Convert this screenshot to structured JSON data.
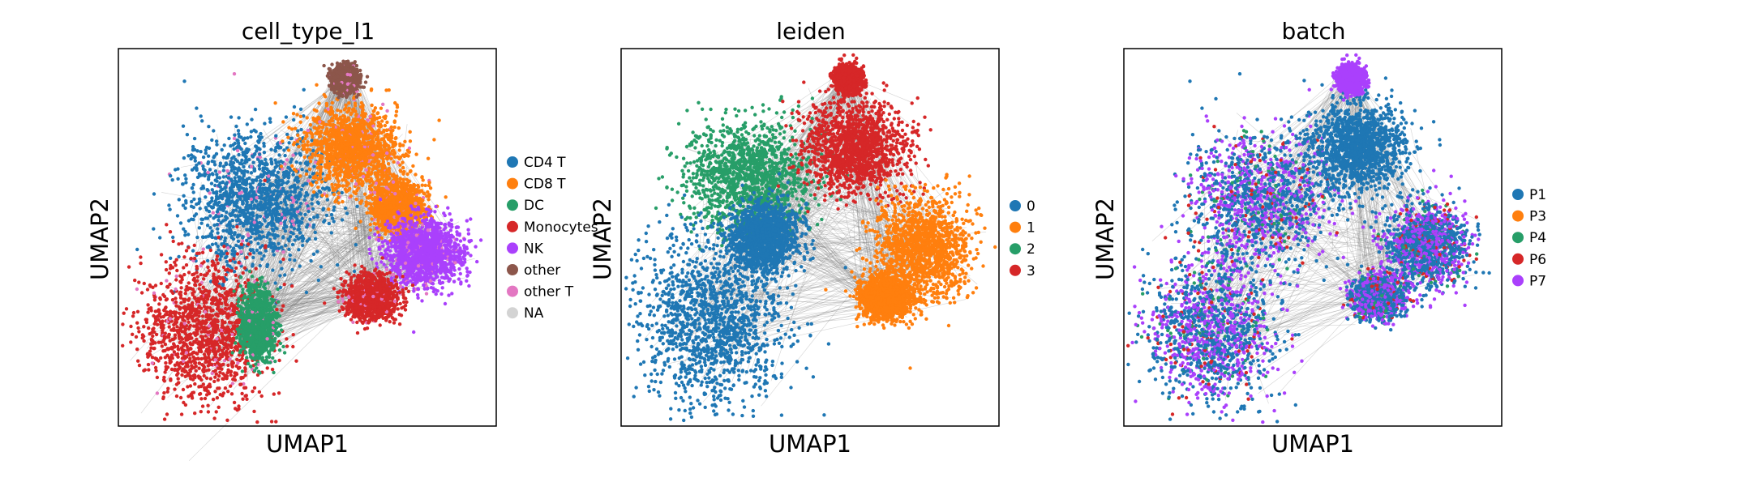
{
  "figure": {
    "panels": [
      {
        "title": "cell_type_l1",
        "xlabel": "UMAP1",
        "ylabel": "UMAP2",
        "legend_title": "",
        "legend": [
          {
            "label": "CD4 T",
            "color": "#1f77b4"
          },
          {
            "label": "CD8 T",
            "color": "#ff7f0e"
          },
          {
            "label": "DC",
            "color": "#279e68"
          },
          {
            "label": "Monocytes",
            "color": "#d62728"
          },
          {
            "label": "NK",
            "color": "#aa40fc"
          },
          {
            "label": "other",
            "color": "#8c564b"
          },
          {
            "label": "other T",
            "color": "#e377c2"
          },
          {
            "label": "NA",
            "color": "#d3d3d3"
          }
        ]
      },
      {
        "title": "leiden",
        "xlabel": "UMAP1",
        "ylabel": "UMAP2",
        "legend": [
          {
            "label": "0",
            "color": "#1f77b4"
          },
          {
            "label": "1",
            "color": "#ff7f0e"
          },
          {
            "label": "2",
            "color": "#279e68"
          },
          {
            "label": "3",
            "color": "#d62728"
          }
        ]
      },
      {
        "title": "batch",
        "xlabel": "UMAP1",
        "ylabel": "UMAP2",
        "legend": [
          {
            "label": "P1",
            "color": "#1f77b4"
          },
          {
            "label": "P3",
            "color": "#ff7f0e"
          },
          {
            "label": "P4",
            "color": "#279e68"
          },
          {
            "label": "P6",
            "color": "#d62728"
          },
          {
            "label": "P7",
            "color": "#aa40fc"
          }
        ]
      }
    ]
  },
  "chart_data": [
    {
      "type": "scatter",
      "title": "cell_type_l1",
      "xlabel": "UMAP1",
      "ylabel": "UMAP2",
      "xticks": [],
      "yticks": [],
      "grid": false,
      "legend_position": "right",
      "edges_color": "#808080",
      "categories": [
        "CD4 T",
        "CD8 T",
        "DC",
        "Monocytes",
        "NK",
        "other",
        "other T",
        "NA"
      ],
      "colors": [
        "#1f77b4",
        "#ff7f0e",
        "#279e68",
        "#d62728",
        "#aa40fc",
        "#8c564b",
        "#e377c2",
        "#d3d3d3"
      ],
      "clusters": [
        {
          "category": "CD4 T",
          "center": [
            0.36,
            0.6
          ],
          "spread": [
            0.17,
            0.16
          ]
        },
        {
          "category": "Monocytes",
          "center": [
            0.23,
            0.25
          ],
          "spread": [
            0.15,
            0.17
          ]
        },
        {
          "category": "DC",
          "center": [
            0.37,
            0.27
          ],
          "spread": [
            0.04,
            0.08
          ]
        },
        {
          "category": "CD8 T",
          "center": [
            0.62,
            0.74
          ],
          "spread": [
            0.11,
            0.1
          ]
        },
        {
          "category": "CD8 T",
          "center": [
            0.74,
            0.58
          ],
          "spread": [
            0.06,
            0.06
          ]
        },
        {
          "category": "NK",
          "center": [
            0.81,
            0.46
          ],
          "spread": [
            0.09,
            0.08
          ]
        },
        {
          "category": "Monocytes",
          "center": [
            0.67,
            0.34
          ],
          "spread": [
            0.06,
            0.05
          ]
        },
        {
          "category": "other",
          "center": [
            0.6,
            0.92
          ],
          "spread": [
            0.03,
            0.03
          ]
        }
      ]
    },
    {
      "type": "scatter",
      "title": "leiden",
      "xlabel": "UMAP1",
      "ylabel": "UMAP2",
      "xticks": [],
      "yticks": [],
      "grid": false,
      "legend_position": "right",
      "edges_color": "#808080",
      "categories": [
        "0",
        "1",
        "2",
        "3"
      ],
      "colors": [
        "#1f77b4",
        "#ff7f0e",
        "#279e68",
        "#d62728"
      ],
      "clusters": [
        {
          "category": "2",
          "center": [
            0.34,
            0.66
          ],
          "spread": [
            0.15,
            0.13
          ]
        },
        {
          "category": "0",
          "center": [
            0.24,
            0.28
          ],
          "spread": [
            0.17,
            0.2
          ]
        },
        {
          "category": "0",
          "center": [
            0.38,
            0.5
          ],
          "spread": [
            0.08,
            0.08
          ]
        },
        {
          "category": "3",
          "center": [
            0.62,
            0.74
          ],
          "spread": [
            0.12,
            0.11
          ]
        },
        {
          "category": "1",
          "center": [
            0.8,
            0.47
          ],
          "spread": [
            0.11,
            0.12
          ]
        },
        {
          "category": "1",
          "center": [
            0.7,
            0.34
          ],
          "spread": [
            0.06,
            0.05
          ]
        },
        {
          "category": "3",
          "center": [
            0.6,
            0.92
          ],
          "spread": [
            0.03,
            0.03
          ]
        }
      ]
    },
    {
      "type": "scatter",
      "title": "batch",
      "xlabel": "UMAP1",
      "ylabel": "UMAP2",
      "xticks": [],
      "yticks": [],
      "grid": false,
      "legend_position": "right",
      "edges_color": "#808080",
      "categories": [
        "P1",
        "P3",
        "P4",
        "P6",
        "P7"
      ],
      "colors": [
        "#1f77b4",
        "#ff7f0e",
        "#279e68",
        "#d62728",
        "#aa40fc"
      ],
      "clusters": [
        {
          "category": "mixed",
          "center": [
            0.36,
            0.6
          ],
          "spread": [
            0.17,
            0.16
          ]
        },
        {
          "category": "mixed",
          "center": [
            0.23,
            0.25
          ],
          "spread": [
            0.15,
            0.17
          ]
        },
        {
          "category": "P1",
          "center": [
            0.62,
            0.74
          ],
          "spread": [
            0.11,
            0.1
          ]
        },
        {
          "category": "mixed",
          "center": [
            0.8,
            0.48
          ],
          "spread": [
            0.1,
            0.1
          ]
        },
        {
          "category": "mixed",
          "center": [
            0.67,
            0.34
          ],
          "spread": [
            0.06,
            0.05
          ]
        },
        {
          "category": "P7",
          "center": [
            0.6,
            0.92
          ],
          "spread": [
            0.03,
            0.03
          ]
        }
      ]
    }
  ]
}
